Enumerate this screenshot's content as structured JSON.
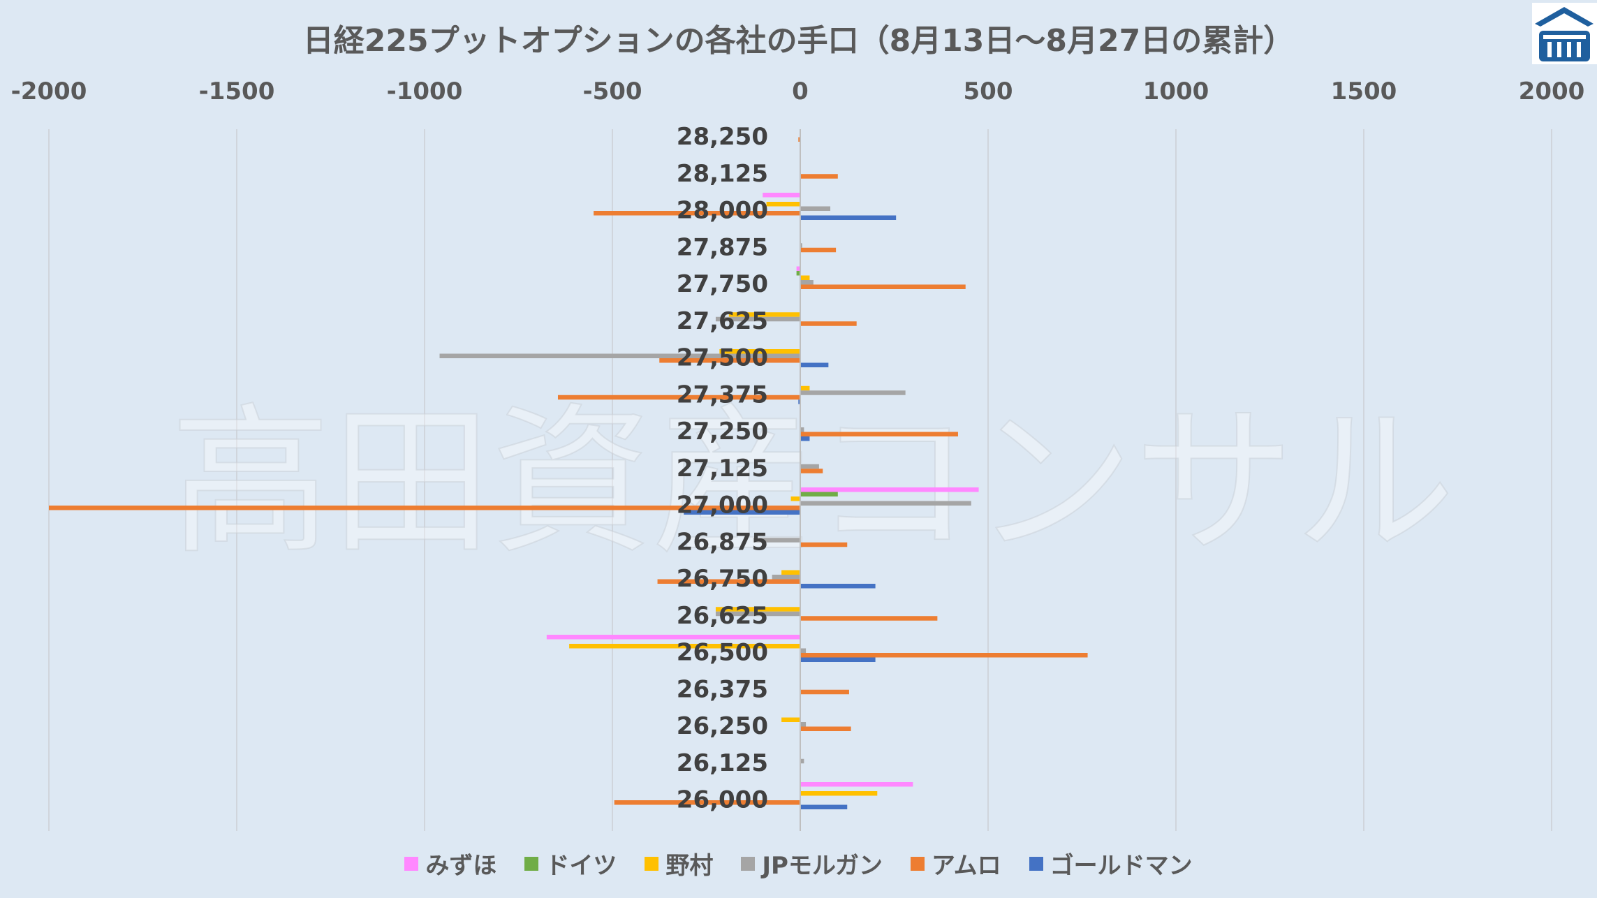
{
  "chart_data": {
    "type": "bar",
    "orientation": "horizontal",
    "title": "日経225プットオプションの各社の手口（8月13日～8月27日の累計）",
    "xlim": [
      -2000,
      2000
    ],
    "xticks": [
      -2000,
      -1500,
      -1000,
      -500,
      0,
      500,
      1000,
      1500,
      2000
    ],
    "grid": true,
    "legend_position": "bottom",
    "categories": [
      "28,250",
      "28,125",
      "28,000",
      "27,875",
      "27,750",
      "27,625",
      "27,500",
      "27,375",
      "27,250",
      "27,125",
      "27,000",
      "26,875",
      "26,750",
      "26,625",
      "26,500",
      "26,375",
      "26,250",
      "26,125",
      "26,000"
    ],
    "series": [
      {
        "name": "みずほ",
        "color": "#ff88ff",
        "values": [
          0,
          0,
          -100,
          0,
          -10,
          0,
          0,
          0,
          0,
          0,
          475,
          0,
          0,
          0,
          -675,
          0,
          0,
          0,
          300
        ]
      },
      {
        "name": "ドイツ",
        "color": "#70ad47",
        "values": [
          0,
          0,
          0,
          0,
          -10,
          0,
          0,
          0,
          0,
          0,
          100,
          0,
          0,
          0,
          0,
          0,
          0,
          0,
          0
        ]
      },
      {
        "name": "野村",
        "color": "#ffc000",
        "values": [
          0,
          0,
          -90,
          0,
          25,
          -190,
          -215,
          25,
          0,
          0,
          -25,
          0,
          -50,
          -225,
          -615,
          0,
          -50,
          0,
          205
        ]
      },
      {
        "name": "JPモルガン",
        "color": "#a5a5a5",
        "values": [
          0,
          0,
          80,
          5,
          35,
          -225,
          -960,
          280,
          10,
          50,
          455,
          -125,
          -75,
          -225,
          15,
          0,
          15,
          10,
          0
        ]
      },
      {
        "name": "アムロ",
        "color": "#ed7d31",
        "values": [
          -5,
          100,
          -550,
          95,
          440,
          150,
          -375,
          -645,
          420,
          60,
          -2000,
          125,
          -380,
          365,
          765,
          130,
          135,
          0,
          -495
        ]
      },
      {
        "name": "ゴールドマン",
        "color": "#4472c4",
        "values": [
          0,
          0,
          255,
          0,
          0,
          0,
          75,
          -5,
          25,
          0,
          -310,
          0,
          200,
          0,
          200,
          0,
          0,
          0,
          125
        ]
      }
    ]
  },
  "watermark": "高田資産コンサル",
  "logo": {
    "icon": "building-icon",
    "color": "#1f5f9e"
  }
}
